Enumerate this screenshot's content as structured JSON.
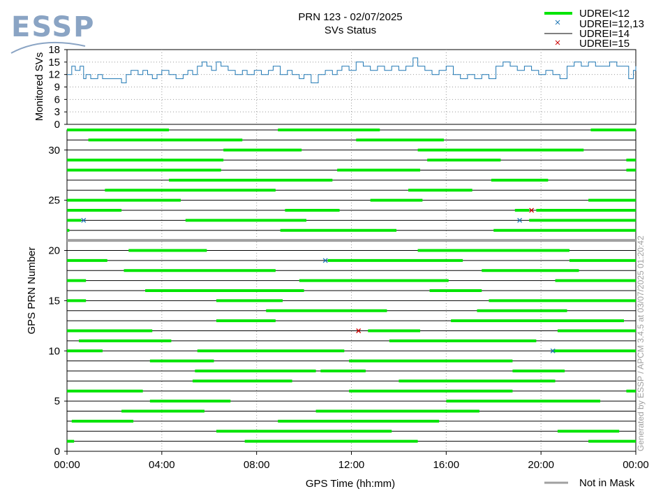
{
  "logo": {
    "text": "ESSP"
  },
  "chart_data": {
    "type": "line",
    "title": "PRN 123 - 02/07/2025",
    "subtitle": "SVs Status",
    "xlabel": "GPS Time (hh:mm)",
    "x_tick_labels": [
      "00:00",
      "04:00",
      "08:00",
      "12:00",
      "16:00",
      "20:00",
      "00:00"
    ],
    "x_range_hours": [
      0,
      24
    ],
    "grid": true,
    "legend": {
      "position": "top-right",
      "entries": [
        {
          "label": "UDREI<12",
          "color": "#00e400",
          "kind": "thick-line"
        },
        {
          "label": "UDREI=12,13",
          "color": "#1f77b4",
          "kind": "x-marker"
        },
        {
          "label": "UDREI=14",
          "color": "#000000",
          "kind": "thin-line"
        },
        {
          "label": "UDREI=15",
          "color": "#cc0000",
          "kind": "x-marker"
        }
      ],
      "bottom_entries": [
        {
          "label": "Not in Mask",
          "color": "#a0a0a0",
          "kind": "thick-line"
        }
      ]
    },
    "top_panel": {
      "ylabel": "Monitored SVs",
      "ylim": [
        0,
        18
      ],
      "y_ticks": [
        0,
        3,
        6,
        9,
        12,
        15,
        18
      ],
      "series": [
        {
          "color": "#1f77b4",
          "hours": [
            0.0,
            0.2,
            0.35,
            0.55,
            0.7,
            0.8,
            1.0,
            1.3,
            1.5,
            1.9,
            2.3,
            2.5,
            2.7,
            3.0,
            3.2,
            3.4,
            3.6,
            3.8,
            4.0,
            4.3,
            4.6,
            4.9,
            5.1,
            5.3,
            5.5,
            5.7,
            5.9,
            6.1,
            6.3,
            6.5,
            6.8,
            7.1,
            7.4,
            7.6,
            7.9,
            8.2,
            8.5,
            8.7,
            9.0,
            9.3,
            9.5,
            9.8,
            10.0,
            10.3,
            10.6,
            10.9,
            11.2,
            11.4,
            11.6,
            11.9,
            12.2,
            12.5,
            12.8,
            13.1,
            13.4,
            13.7,
            14.0,
            14.3,
            14.6,
            14.8,
            15.1,
            15.4,
            15.7,
            16.0,
            16.3,
            16.6,
            16.9,
            17.2,
            17.5,
            17.8,
            18.1,
            18.4,
            18.7,
            19.0,
            19.3,
            19.6,
            19.9,
            20.2,
            20.5,
            20.8,
            21.1,
            21.4,
            21.7,
            22.0,
            22.3,
            22.6,
            22.9,
            23.2,
            23.5,
            23.7,
            23.9,
            24.0
          ],
          "values": [
            12,
            14,
            13,
            14,
            11,
            12,
            11,
            12,
            11,
            11,
            10,
            12,
            13,
            12,
            13,
            12,
            11,
            12,
            13,
            12,
            11,
            12,
            13,
            12,
            14,
            15,
            14,
            13,
            15,
            14,
            13,
            12,
            13,
            12,
            13,
            12,
            13,
            14,
            12,
            13,
            12,
            11,
            12,
            10,
            12,
            13,
            12,
            13,
            14,
            13,
            15,
            14,
            13,
            14,
            13,
            14,
            13,
            14,
            16,
            14,
            13,
            12,
            13,
            14,
            12,
            11,
            12,
            11,
            12,
            11,
            14,
            15,
            14,
            13,
            14,
            13,
            12,
            13,
            12,
            11,
            14,
            15,
            14,
            15,
            14,
            14,
            15,
            14,
            14,
            11,
            13,
            14
          ]
        }
      ]
    },
    "bottom_panel": {
      "ylabel": "GPS PRN Number",
      "ylim": [
        0,
        32
      ],
      "y_ticks": [
        0,
        5,
        10,
        15,
        20,
        25,
        30
      ],
      "not_in_mask_prns": [
        21
      ],
      "prns": [
        {
          "prn": 1,
          "udrei_lt12": [
            [
              0.0,
              0.3
            ],
            [
              7.5,
              14.8
            ],
            [
              22.0,
              24.0
            ]
          ]
        },
        {
          "prn": 2,
          "udrei_lt12": [
            [
              6.3,
              13.7
            ],
            [
              20.7,
              23.3
            ]
          ]
        },
        {
          "prn": 3,
          "udrei_lt12": [
            [
              0.2,
              2.8
            ],
            [
              8.9,
              15.7
            ]
          ]
        },
        {
          "prn": 4,
          "udrei_lt12": [
            [
              2.3,
              5.8
            ],
            [
              10.5,
              17.4
            ]
          ]
        },
        {
          "prn": 5,
          "udrei_lt12": [
            [
              3.5,
              6.9
            ],
            [
              16.0,
              22.5
            ]
          ]
        },
        {
          "prn": 6,
          "udrei_lt12": [
            [
              0.0,
              3.2
            ],
            [
              11.9,
              18.8
            ],
            [
              23.6,
              24.0
            ]
          ]
        },
        {
          "prn": 7,
          "udrei_lt12": [
            [
              5.3,
              9.5
            ],
            [
              14.0,
              20.6
            ]
          ]
        },
        {
          "prn": 8,
          "udrei_lt12": [
            [
              5.4,
              10.5
            ],
            [
              10.7,
              12.6
            ],
            [
              18.8,
              21.0
            ]
          ]
        },
        {
          "prn": 9,
          "udrei_lt12": [
            [
              3.5,
              6.2
            ],
            [
              11.9,
              18.8
            ]
          ]
        },
        {
          "prn": 10,
          "udrei_lt12": [
            [
              0.0,
              1.5
            ],
            [
              5.5,
              11.7
            ],
            [
              20.5,
              24.0
            ]
          ],
          "udrei_12_13": [
            20.5
          ]
        },
        {
          "prn": 11,
          "udrei_lt12": [
            [
              0.5,
              4.4
            ],
            [
              13.6,
              19.8
            ]
          ]
        },
        {
          "prn": 12,
          "udrei_lt12": [
            [
              0.0,
              3.6
            ],
            [
              12.7,
              14.9
            ],
            [
              20.7,
              24.0
            ]
          ],
          "udrei_15": [
            12.3
          ]
        },
        {
          "prn": 13,
          "udrei_lt12": [
            [
              6.3,
              8.8
            ],
            [
              16.2,
              23.5
            ]
          ]
        },
        {
          "prn": 14,
          "udrei_lt12": [
            [
              8.4,
              13.5
            ],
            [
              17.3,
              21.1
            ]
          ]
        },
        {
          "prn": 15,
          "udrei_lt12": [
            [
              0.0,
              0.8
            ],
            [
              6.3,
              9.1
            ],
            [
              17.8,
              24.0
            ]
          ]
        },
        {
          "prn": 16,
          "udrei_lt12": [
            [
              3.3,
              10.0
            ],
            [
              15.3,
              17.5
            ]
          ]
        },
        {
          "prn": 17,
          "udrei_lt12": [
            [
              0.0,
              0.8
            ],
            [
              9.8,
              16.1
            ],
            [
              20.6,
              24.0
            ]
          ]
        },
        {
          "prn": 18,
          "udrei_lt12": [
            [
              2.4,
              8.8
            ],
            [
              17.5,
              21.6
            ]
          ]
        },
        {
          "prn": 19,
          "udrei_lt12": [
            [
              0.0,
              1.7
            ],
            [
              11.0,
              16.7
            ],
            [
              21.2,
              24.0
            ]
          ],
          "udrei_12_13": [
            10.9
          ]
        },
        {
          "prn": 20,
          "udrei_lt12": [
            [
              2.6,
              5.9
            ],
            [
              14.8,
              21.2
            ]
          ]
        },
        {
          "prn": 21,
          "udrei_lt12": []
        },
        {
          "prn": 22,
          "udrei_lt12": [
            [
              0.0,
              0.1
            ],
            [
              9.0,
              13.9
            ],
            [
              18.0,
              24.0
            ]
          ]
        },
        {
          "prn": 23,
          "udrei_lt12": [
            [
              0.0,
              0.6
            ],
            [
              5.0,
              10.1
            ],
            [
              19.5,
              24.0
            ]
          ],
          "udrei_12_13": [
            0.7,
            19.1
          ]
        },
        {
          "prn": 24,
          "udrei_lt12": [
            [
              0.0,
              2.3
            ],
            [
              9.2,
              11.5
            ],
            [
              18.9,
              19.5
            ],
            [
              19.8,
              24.0
            ]
          ],
          "udrei_15": [
            19.6
          ]
        },
        {
          "prn": 25,
          "udrei_lt12": [
            [
              0.0,
              4.8
            ],
            [
              12.8,
              15.0
            ],
            [
              22.0,
              24.0
            ]
          ]
        },
        {
          "prn": 26,
          "udrei_lt12": [
            [
              1.6,
              8.8
            ],
            [
              14.4,
              17.1
            ]
          ]
        },
        {
          "prn": 27,
          "udrei_lt12": [
            [
              4.3,
              11.2
            ],
            [
              17.9,
              20.3
            ]
          ]
        },
        {
          "prn": 28,
          "udrei_lt12": [
            [
              0.0,
              6.5
            ],
            [
              11.4,
              14.9
            ],
            [
              23.6,
              24.0
            ]
          ]
        },
        {
          "prn": 29,
          "udrei_lt12": [
            [
              0.0,
              6.6
            ],
            [
              15.2,
              18.3
            ],
            [
              23.6,
              24.0
            ]
          ]
        },
        {
          "prn": 30,
          "udrei_lt12": [
            [
              6.6,
              9.9
            ],
            [
              14.8,
              21.8
            ]
          ]
        },
        {
          "prn": 31,
          "udrei_lt12": [
            [
              0.9,
              7.4
            ],
            [
              12.2,
              15.9
            ]
          ]
        },
        {
          "prn": 32,
          "udrei_lt12": [
            [
              0.0,
              4.3
            ],
            [
              8.9,
              13.2
            ],
            [
              22.1,
              24.0
            ]
          ]
        }
      ]
    }
  },
  "footer": "Generated by ESSP / APCM 3.4.5 at 03/07/2025 01:20:42"
}
